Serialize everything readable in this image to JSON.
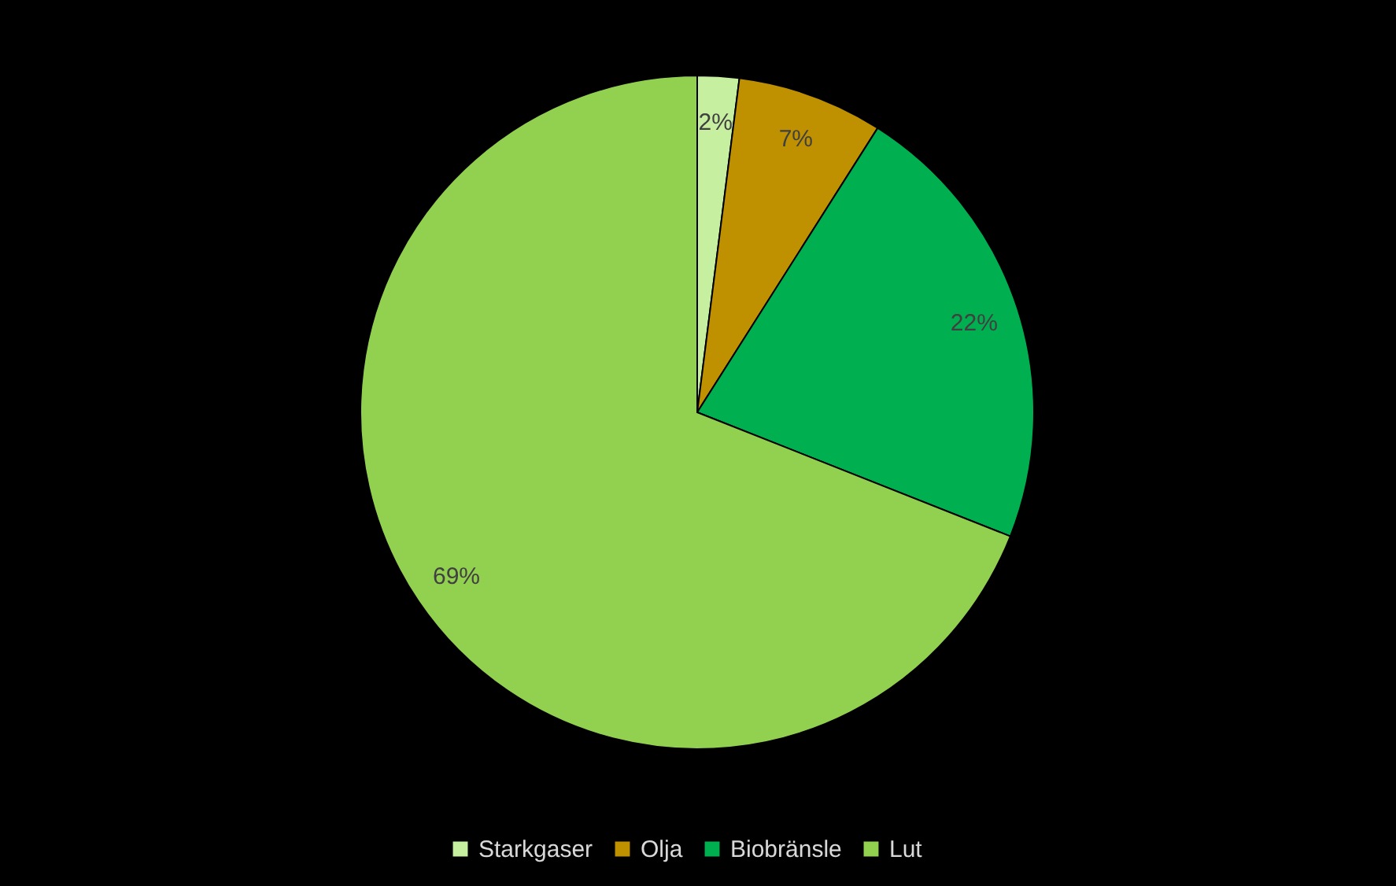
{
  "chart_data": {
    "type": "pie",
    "categories": [
      "Starkgaser",
      "Olja",
      "Biobränsle",
      "Lut"
    ],
    "values": [
      2,
      7,
      22,
      69
    ],
    "colors": [
      "#c6efa0",
      "#bf9000",
      "#00b050",
      "#92d050"
    ],
    "value_labels": [
      "2%",
      "7%",
      "22%",
      "69%"
    ],
    "legend": "bottom"
  }
}
